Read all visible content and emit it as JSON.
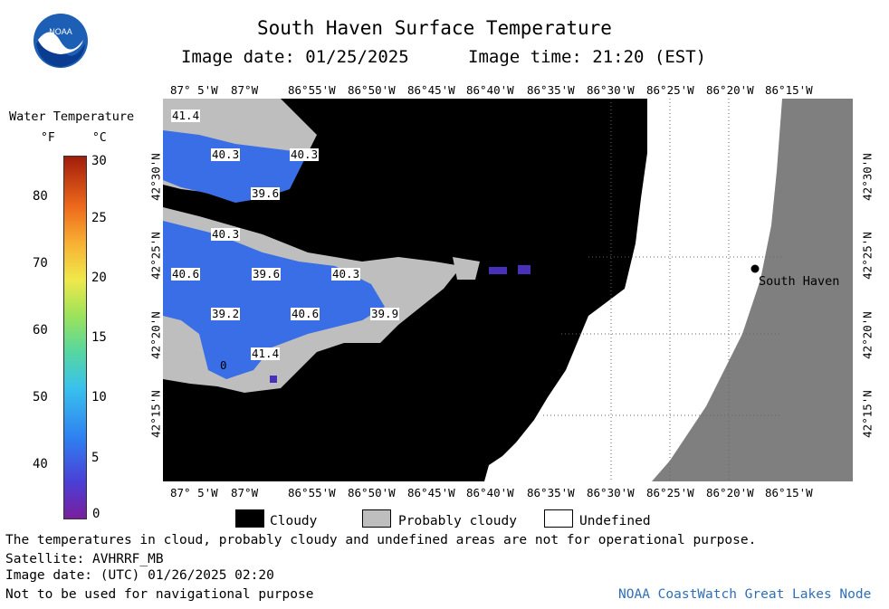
{
  "header": {
    "title": "South Haven Surface Temperature",
    "image_date": "Image date: 01/25/2025",
    "image_time": "Image time: 21:20 (EST)",
    "logo_text": "NOAA"
  },
  "colorbar": {
    "title": "Water Temperature",
    "unit_f": "°F",
    "unit_c": "°C",
    "f_ticks": [
      "80",
      "70",
      "60",
      "50",
      "40"
    ],
    "c_ticks": [
      "30",
      "25",
      "20",
      "15",
      "10",
      "5",
      "0"
    ]
  },
  "map": {
    "lon_labels": [
      "87° 5'W",
      "87°W",
      "86°55'W",
      "86°50'W",
      "86°45'W",
      "86°40'W",
      "86°35'W",
      "86°30'W",
      "86°25'W",
      "86°20'W",
      "86°15'W"
    ],
    "lat_labels": [
      "42°30'N",
      "42°25'N",
      "42°20'N",
      "42°15'N"
    ],
    "city": "South Haven",
    "temp_labels": [
      "41.4",
      "40.3",
      "40.3",
      "39.6",
      "40.3",
      "40.6",
      "39.6",
      "40.3",
      "39.2",
      "40.6",
      "39.9",
      "41.4",
      "0"
    ],
    "colors": {
      "cloud": "#000000",
      "probably_cloudy": "#bebebe",
      "undefined": "#ffffff",
      "land": "#7f7f7f",
      "water": "#3a6ee6",
      "water_dark": "#4a2fb8"
    }
  },
  "legend": {
    "cloudy": "Cloudy",
    "probably_cloudy": "Probably cloudy",
    "undefined": "Undefined"
  },
  "footer": {
    "disclaimer": "The temperatures in cloud, probably cloudy and undefined areas are not for operational purpose.",
    "satellite": "Satellite: AVHRRF_MB",
    "utc_date": "Image date: (UTC) 01/26/2025  02:20",
    "nav": "Not to be used for navigational purpose",
    "credit": "NOAA CoastWatch Great Lakes Node"
  }
}
